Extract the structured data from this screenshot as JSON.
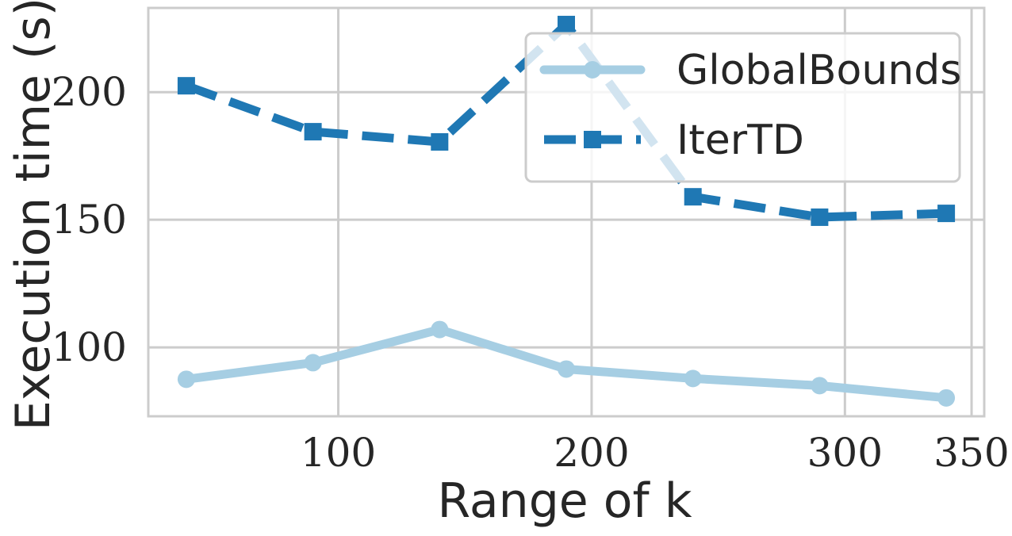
{
  "chart_data": {
    "type": "line",
    "title": "",
    "xlabel": "Range of k",
    "ylabel": "Execution time (s)",
    "xlim": [
      25,
      355
    ],
    "ylim": [
      73,
      233
    ],
    "xticks": [
      100,
      200,
      300,
      350
    ],
    "yticks": [
      100,
      150,
      200
    ],
    "grid": true,
    "legend_position": "top-right",
    "series": [
      {
        "name": "GlobalBounds",
        "color": "#a6cee3",
        "line_style": "solid",
        "marker": "circle",
        "x": [
          40,
          90,
          140,
          190,
          240,
          290,
          340
        ],
        "values": [
          87.5,
          94,
          107,
          91.5,
          87.8,
          85,
          80.2
        ]
      },
      {
        "name": "IterTD",
        "color": "#1f78b4",
        "line_style": "dashed",
        "marker": "square",
        "x": [
          40,
          90,
          140,
          190,
          240,
          290,
          340
        ],
        "values": [
          202.5,
          184.5,
          180.5,
          226.5,
          159,
          151,
          152.5
        ]
      }
    ]
  }
}
